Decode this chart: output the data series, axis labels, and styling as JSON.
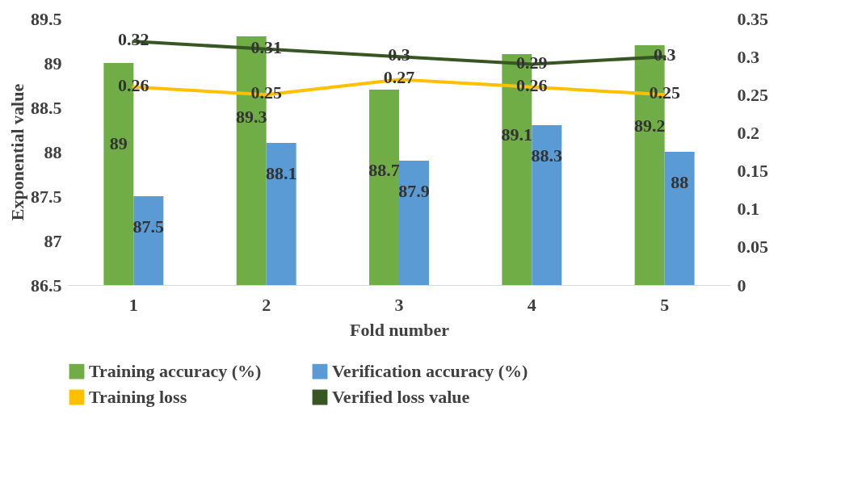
{
  "chart_data": {
    "type": "bar",
    "xlabel": "Fold number",
    "ylabel": "Exponential value",
    "categories": [
      "1",
      "2",
      "3",
      "4",
      "5"
    ],
    "series": [
      {
        "name": "Training accuracy (%)",
        "color": "#70ad47",
        "values": [
          89,
          89.3,
          88.7,
          89.1,
          89.2
        ]
      },
      {
        "name": "Verification accuracy (%)",
        "color": "#5b9bd5",
        "values": [
          87.5,
          88.1,
          87.9,
          88.3,
          88
        ]
      },
      {
        "name": "Training loss",
        "type": "line",
        "axis": "y2",
        "color": "#ffc000",
        "values": [
          0.26,
          0.25,
          0.27,
          0.26,
          0.25
        ]
      },
      {
        "name": "Verified loss value",
        "type": "line",
        "axis": "y2",
        "color": "#375623",
        "values": [
          0.32,
          0.31,
          0.3,
          0.29,
          0.3
        ]
      }
    ],
    "ylim": [
      86.5,
      89.5
    ],
    "yticks": [
      86.5,
      87,
      87.5,
      88,
      88.5,
      89,
      89.5
    ],
    "y2lim": [
      0,
      0.35
    ],
    "y2ticks": [
      0,
      0.05,
      0.1,
      0.15,
      0.2,
      0.25,
      0.3,
      0.35
    ],
    "data_labels": true,
    "grid": false,
    "legend": "bottom",
    "line_style": "solid",
    "marker": "none"
  }
}
